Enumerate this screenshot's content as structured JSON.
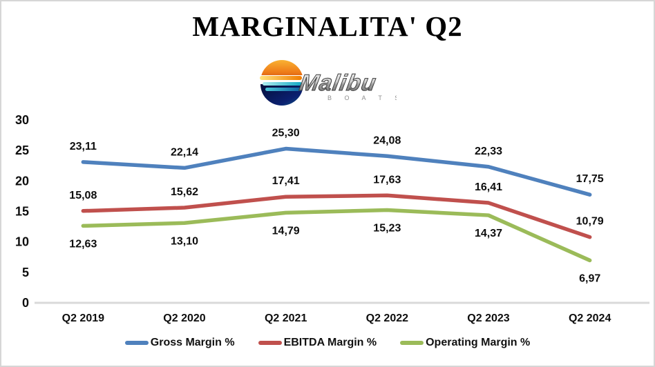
{
  "title": "MARGINALITA' Q2",
  "logo": {
    "brand": "Malibu",
    "boats": "B O A T S"
  },
  "chart_data": {
    "type": "line",
    "title": "MARGINALITA' Q2",
    "categories": [
      "Q2 2019",
      "Q2 2020",
      "Q2 2021",
      "Q2 2022",
      "Q2 2023",
      "Q2 2024"
    ],
    "series": [
      {
        "name": "Gross Margin %",
        "color": "#4F81BD",
        "values": [
          23.11,
          22.14,
          25.3,
          24.08,
          22.33,
          17.75
        ],
        "labels": [
          "23,11",
          "22,14",
          "25,30",
          "24,08",
          "22,33",
          "17,75"
        ],
        "label_position": "above"
      },
      {
        "name": "EBITDA Margin %",
        "color": "#C0504D",
        "values": [
          15.08,
          15.62,
          17.41,
          17.63,
          16.41,
          10.79
        ],
        "labels": [
          "15,08",
          "15,62",
          "17,41",
          "17,63",
          "16,41",
          "10,79"
        ],
        "label_position": "above"
      },
      {
        "name": "Operating Margin %",
        "color": "#9BBB59",
        "values": [
          12.63,
          13.1,
          14.79,
          15.23,
          14.37,
          6.97
        ],
        "labels": [
          "12,63",
          "13,10",
          "14,79",
          "15,23",
          "14,37",
          "6,97"
        ],
        "label_position": "below"
      }
    ],
    "yticks": [
      0,
      5,
      10,
      15,
      20,
      25,
      30
    ],
    "ylim": [
      0,
      30
    ],
    "xlabel": "",
    "ylabel": "",
    "grid": false,
    "legend_position": "bottom",
    "axis_color": "#D9D9D9"
  }
}
